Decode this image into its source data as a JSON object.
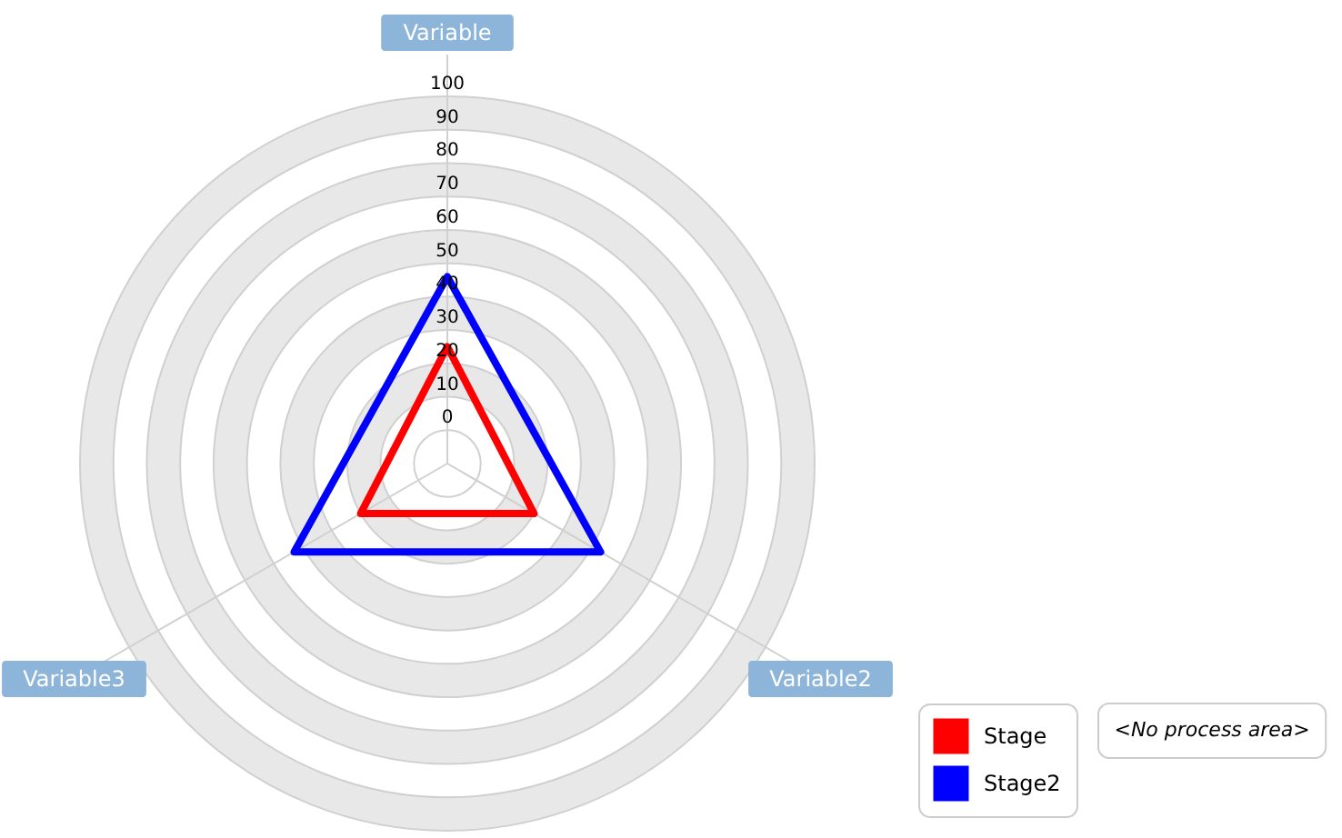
{
  "chart_data": {
    "type": "radar",
    "categories": [
      "Variable",
      "Variable2",
      "Variable3"
    ],
    "series": [
      {
        "name": "Stage",
        "color": "#ff0000",
        "values": [
          25,
          20,
          20
        ]
      },
      {
        "name": "Stage2",
        "color": "#0000ff",
        "values": [
          46,
          43,
          43
        ]
      }
    ],
    "ylim": [
      -10,
      100
    ],
    "yticks": [
      0,
      10,
      20,
      30,
      40,
      50,
      60,
      70,
      80,
      90,
      100
    ],
    "grid": true,
    "legend": "bottom right",
    "annotations": [
      "<No process area>"
    ]
  }
}
